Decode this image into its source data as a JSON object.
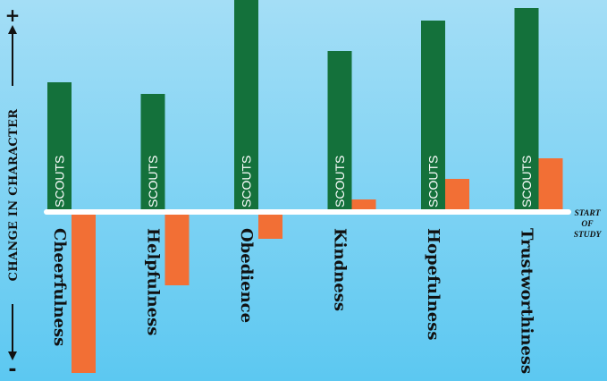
{
  "chart_data": {
    "type": "bar",
    "categories": [
      "Cheerfulness",
      "Helpfulness",
      "Obedience",
      "Kindness",
      "Hopefulness",
      "Trustworthiness"
    ],
    "series": [
      {
        "name": "SCOUTS",
        "color": "#14713b",
        "values": [
          145,
          132,
          240,
          180,
          214,
          228
        ]
      },
      {
        "color": "#f26f35",
        "values": [
          -180,
          -82,
          -30,
          14,
          37,
          60
        ]
      }
    ],
    "ylabel": "CHANGE IN CHARACTER",
    "y_positive_label": "+",
    "y_negative_label": "-",
    "baseline_label": [
      "START",
      "OF",
      "STUDY"
    ],
    "ylim": [
      -190,
      240
    ],
    "grid": false,
    "background": [
      "#a4def6",
      "#5cc8f1"
    ]
  }
}
